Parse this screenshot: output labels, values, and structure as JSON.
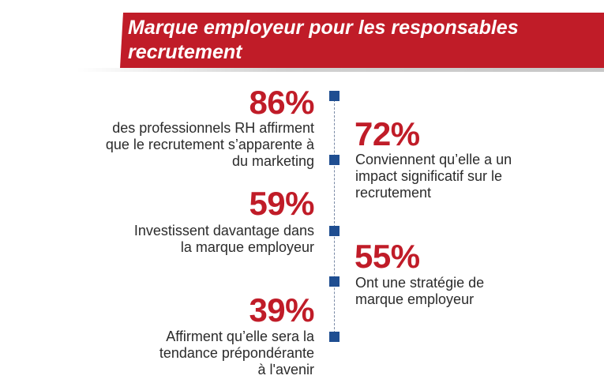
{
  "title": "Marque employeur pour les responsables recrutement",
  "stats": [
    {
      "value": "86%",
      "lines": [
        "des professionnels RH affirment",
        "que le recrutement s’apparente à",
        "du marketing"
      ]
    },
    {
      "value": "72%",
      "lines": [
        "Conviennent qu’elle a un",
        "impact significatif sur le",
        "recrutement"
      ]
    },
    {
      "value": "59%",
      "lines": [
        "Investissent davantage dans",
        "la marque employeur"
      ]
    },
    {
      "value": "55%",
      "lines": [
        "Ont une stratégie de",
        "marque employeur"
      ]
    },
    {
      "value": "39%",
      "lines": [
        "Affirment qu’elle sera la",
        "tendance prépondérante",
        "à l'avenir"
      ]
    }
  ],
  "colors": {
    "accent": "#c01c28",
    "marker": "#1f4e91",
    "text": "#2b2b2b"
  }
}
